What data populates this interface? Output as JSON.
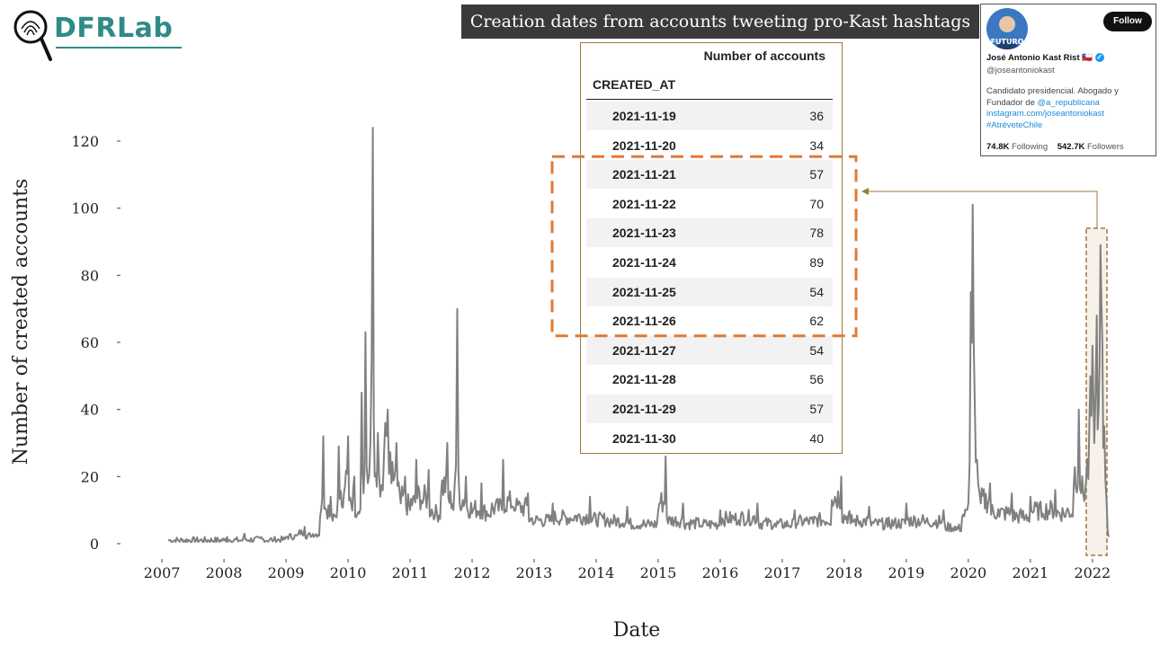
{
  "logo": {
    "text": "DFRLab"
  },
  "banner": {
    "title": "Creation dates from accounts tweeting pro-Kast hashtags"
  },
  "chart_data": {
    "type": "line",
    "title": "Creation dates from accounts tweeting pro-Kast hashtags",
    "xlabel": "Date",
    "ylabel": "Number of created accounts",
    "ylim": [
      0,
      125
    ],
    "yticks": [
      0,
      20,
      40,
      60,
      80,
      100,
      120
    ],
    "xticks": [
      "2007",
      "2008",
      "2009",
      "2010",
      "2011",
      "2012",
      "2013",
      "2014",
      "2015",
      "2016",
      "2017",
      "2018",
      "2019",
      "2020",
      "2021",
      "2022"
    ],
    "xlim": [
      2007.1,
      2022.35
    ],
    "grid": false,
    "line_color": "#808080",
    "highlight_color": "#e07a34",
    "note": "Daily series; peaks at 2010 (~124), 2012 (~70), 2020 (~101), Nov 2021 (~89)",
    "series": [
      {
        "values": [
          [
            2007.1,
            1
          ],
          [
            2008.0,
            1
          ],
          [
            2008.05,
            2
          ],
          [
            2008.1,
            1
          ],
          [
            2008.3,
            1
          ],
          [
            2008.33,
            3
          ],
          [
            2008.4,
            1
          ],
          [
            2008.6,
            2
          ],
          [
            2008.8,
            1
          ],
          [
            2009.0,
            2
          ],
          [
            2009.2,
            3
          ],
          [
            2009.3,
            5
          ],
          [
            2009.4,
            2
          ],
          [
            2009.55,
            8
          ],
          [
            2009.6,
            32
          ],
          [
            2009.65,
            10
          ],
          [
            2009.72,
            14
          ],
          [
            2009.8,
            8
          ],
          [
            2009.85,
            29
          ],
          [
            2009.9,
            11
          ],
          [
            2009.95,
            17
          ],
          [
            2010.0,
            32
          ],
          [
            2010.05,
            12
          ],
          [
            2010.1,
            20
          ],
          [
            2010.18,
            9
          ],
          [
            2010.22,
            45
          ],
          [
            2010.25,
            15
          ],
          [
            2010.28,
            63
          ],
          [
            2010.32,
            18
          ],
          [
            2010.36,
            30
          ],
          [
            2010.4,
            124
          ],
          [
            2010.43,
            20
          ],
          [
            2010.48,
            33
          ],
          [
            2010.52,
            14
          ],
          [
            2010.58,
            27
          ],
          [
            2010.64,
            40
          ],
          [
            2010.7,
            18
          ],
          [
            2010.78,
            30
          ],
          [
            2010.85,
            12
          ],
          [
            2010.92,
            20
          ],
          [
            2011.0,
            10
          ],
          [
            2011.1,
            25
          ],
          [
            2011.2,
            12
          ],
          [
            2011.3,
            22
          ],
          [
            2011.4,
            8
          ],
          [
            2011.5,
            15
          ],
          [
            2011.6,
            30
          ],
          [
            2011.7,
            10
          ],
          [
            2011.76,
            70
          ],
          [
            2011.8,
            12
          ],
          [
            2011.9,
            20
          ],
          [
            2012.0,
            9
          ],
          [
            2012.15,
            18
          ],
          [
            2012.3,
            8
          ],
          [
            2012.5,
            25
          ],
          [
            2012.7,
            10
          ],
          [
            2012.9,
            15
          ],
          [
            2013.0,
            6
          ],
          [
            2013.3,
            12
          ],
          [
            2013.6,
            7
          ],
          [
            2013.9,
            14
          ],
          [
            2014.2,
            6
          ],
          [
            2014.5,
            11
          ],
          [
            2014.8,
            5
          ],
          [
            2015.0,
            10
          ],
          [
            2015.12,
            26
          ],
          [
            2015.16,
            6
          ],
          [
            2015.4,
            12
          ],
          [
            2015.7,
            5
          ],
          [
            2016.0,
            10
          ],
          [
            2016.3,
            7
          ],
          [
            2016.6,
            12
          ],
          [
            2016.9,
            5
          ],
          [
            2017.2,
            10
          ],
          [
            2017.5,
            6
          ],
          [
            2017.8,
            13
          ],
          [
            2017.95,
            20
          ],
          [
            2018.1,
            6
          ],
          [
            2018.4,
            11
          ],
          [
            2018.7,
            5
          ],
          [
            2019.0,
            12
          ],
          [
            2019.3,
            6
          ],
          [
            2019.6,
            10
          ],
          [
            2019.8,
            4
          ],
          [
            2019.9,
            8
          ],
          [
            2020.0,
            12
          ],
          [
            2020.04,
            75
          ],
          [
            2020.07,
            101
          ],
          [
            2020.1,
            45
          ],
          [
            2020.14,
            25
          ],
          [
            2020.2,
            12
          ],
          [
            2020.35,
            18
          ],
          [
            2020.5,
            8
          ],
          [
            2020.7,
            15
          ],
          [
            2020.9,
            7
          ],
          [
            2021.0,
            14
          ],
          [
            2021.2,
            9
          ],
          [
            2021.4,
            16
          ],
          [
            2021.55,
            8
          ],
          [
            2021.7,
            18
          ],
          [
            2021.78,
            40
          ],
          [
            2021.82,
            15
          ],
          [
            2021.9,
            20
          ],
          [
            2021.95,
            35
          ],
          [
            2022.0,
            59
          ],
          [
            2022.03,
            30
          ],
          [
            2022.07,
            68
          ],
          [
            2022.1,
            40
          ],
          [
            2022.13,
            89
          ],
          [
            2022.16,
            60
          ],
          [
            2022.19,
            35
          ],
          [
            2022.23,
            12
          ],
          [
            2022.26,
            2
          ]
        ]
      }
    ],
    "table": {
      "header_value": "Number of accounts",
      "header_index": "CREATED_AT",
      "rows": [
        {
          "date": "2021-11-19",
          "value": "36"
        },
        {
          "date": "2021-11-20",
          "value": "34"
        },
        {
          "date": "2021-11-21",
          "value": "57"
        },
        {
          "date": "2021-11-22",
          "value": "70"
        },
        {
          "date": "2021-11-23",
          "value": "78"
        },
        {
          "date": "2021-11-24",
          "value": "89"
        },
        {
          "date": "2021-11-25",
          "value": "54"
        },
        {
          "date": "2021-11-26",
          "value": "62"
        },
        {
          "date": "2021-11-27",
          "value": "54"
        },
        {
          "date": "2021-11-28",
          "value": "56"
        },
        {
          "date": "2021-11-29",
          "value": "57"
        },
        {
          "date": "2021-11-30",
          "value": "40"
        }
      ],
      "highlighted_dates": [
        "2021-11-21",
        "2021-11-26"
      ]
    }
  },
  "profile": {
    "follow_label": "Follow",
    "name": "José Antonio Kast Rist 🇨🇱",
    "handle": "@joseantoniokast",
    "bio_line1": "Candidato presidencial. Abogado y",
    "bio_line2_prefix": "Fundador de",
    "bio_mention": "@a_republicana",
    "bio_link": "instagram.com/joseantoniokast",
    "bio_hashtag": "#AtréveteChile",
    "following_count": "74.8K",
    "following_label": "Following",
    "followers_count": "542.7K",
    "followers_label": "Followers",
    "avatar_text": "FUTURO",
    "icons": {
      "avatar": "avatar-icon",
      "verified": "verified-badge-icon"
    }
  }
}
